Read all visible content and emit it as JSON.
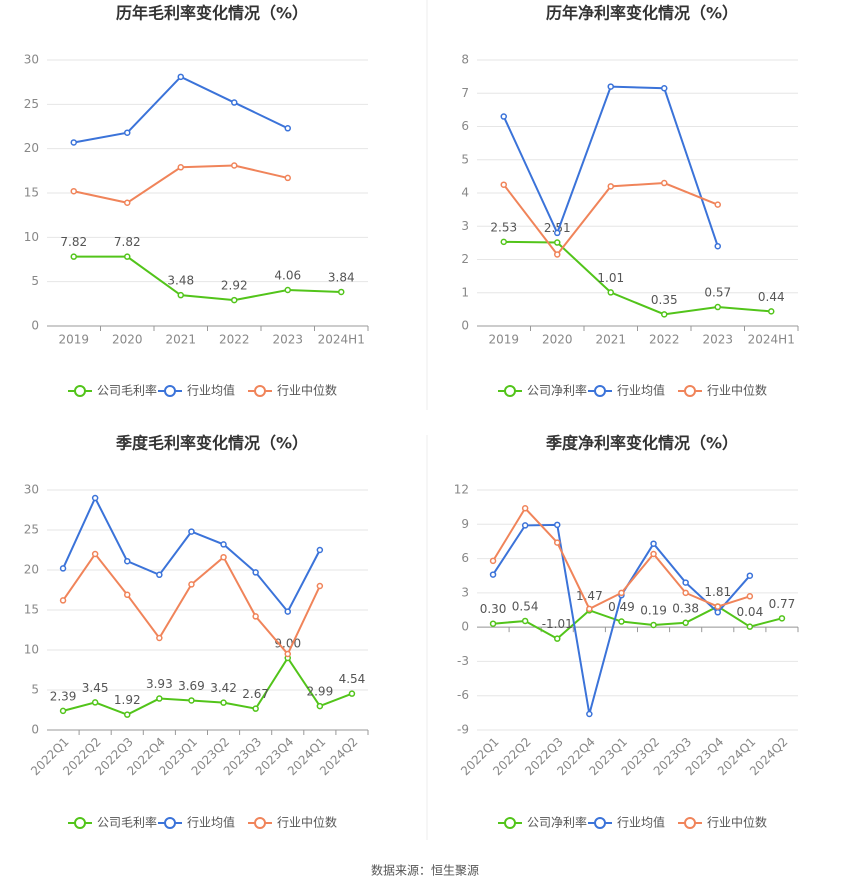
{
  "chart_data": [
    {
      "type": "line",
      "title": "历年毛利率变化情况（%）",
      "categories": [
        "2019",
        "2020",
        "2021",
        "2022",
        "2023",
        "2024H1"
      ],
      "ylim": [
        0,
        30
      ],
      "yticks": [
        0,
        5,
        10,
        15,
        20,
        25,
        30
      ],
      "grid": true,
      "series": [
        {
          "name": "公司毛利率",
          "color": "#52c41a",
          "values": [
            7.82,
            7.82,
            3.48,
            2.92,
            4.06,
            3.84
          ],
          "value_labels": [
            "7.82",
            "7.82",
            "3.48",
            "2.92",
            "4.06",
            "3.84"
          ]
        },
        {
          "name": "行业均值",
          "color": "#3b73d9",
          "values": [
            20.7,
            21.8,
            28.1,
            25.2,
            22.3,
            null
          ]
        },
        {
          "name": "行业中位数",
          "color": "#f0845a",
          "values": [
            15.2,
            13.9,
            17.9,
            18.1,
            16.7,
            null
          ]
        }
      ]
    },
    {
      "type": "line",
      "title": "历年净利率变化情况（%）",
      "categories": [
        "2019",
        "2020",
        "2021",
        "2022",
        "2023",
        "2024H1"
      ],
      "ylim": [
        0,
        8
      ],
      "yticks": [
        0,
        1,
        2,
        3,
        4,
        5,
        6,
        7,
        8
      ],
      "grid": true,
      "series": [
        {
          "name": "公司净利率",
          "color": "#52c41a",
          "values": [
            2.53,
            2.51,
            1.01,
            0.35,
            0.57,
            0.44
          ],
          "value_labels": [
            "2.53",
            "2.51",
            "1.01",
            "0.35",
            "0.57",
            "0.44"
          ]
        },
        {
          "name": "行业均值",
          "color": "#3b73d9",
          "values": [
            6.3,
            2.8,
            7.2,
            7.15,
            2.4,
            null
          ]
        },
        {
          "name": "行业中位数",
          "color": "#f0845a",
          "values": [
            4.25,
            2.15,
            4.2,
            4.3,
            3.65,
            null
          ]
        }
      ]
    },
    {
      "type": "line",
      "title": "季度毛利率变化情况（%）",
      "categories": [
        "2022Q1",
        "2022Q2",
        "2022Q3",
        "2022Q4",
        "2023Q1",
        "2023Q2",
        "2023Q3",
        "2023Q4",
        "2024Q1",
        "2024Q2"
      ],
      "ylim": [
        0,
        30
      ],
      "yticks": [
        0,
        5,
        10,
        15,
        20,
        25,
        30
      ],
      "grid": true,
      "series": [
        {
          "name": "公司毛利率",
          "color": "#52c41a",
          "values": [
            2.39,
            3.45,
            1.92,
            3.93,
            3.69,
            3.42,
            2.67,
            9.0,
            2.99,
            4.54
          ],
          "value_labels": [
            "2.39",
            "3.45",
            "1.92",
            "3.93",
            "3.69",
            "3.42",
            "2.67",
            "9.00",
            "2.99",
            "4.54"
          ]
        },
        {
          "name": "行业均值",
          "color": "#3b73d9",
          "values": [
            20.2,
            29.0,
            21.1,
            19.4,
            24.8,
            23.2,
            19.7,
            14.8,
            22.5,
            null
          ]
        },
        {
          "name": "行业中位数",
          "color": "#f0845a",
          "values": [
            16.2,
            22.0,
            16.9,
            11.5,
            18.2,
            21.6,
            14.2,
            9.5,
            18.0,
            null
          ]
        }
      ]
    },
    {
      "type": "line",
      "title": "季度净利率变化情况（%）",
      "categories": [
        "2022Q1",
        "2022Q2",
        "2022Q3",
        "2022Q4",
        "2023Q1",
        "2023Q2",
        "2023Q3",
        "2023Q4",
        "2024Q1",
        "2024Q2"
      ],
      "ylim": [
        -9,
        12
      ],
      "yticks": [
        -9,
        -6,
        -3,
        0,
        3,
        6,
        9,
        12
      ],
      "grid": true,
      "series": [
        {
          "name": "公司净利率",
          "color": "#52c41a",
          "values": [
            0.3,
            0.54,
            -1.01,
            1.47,
            0.49,
            0.19,
            0.38,
            1.81,
            0.04,
            0.77
          ],
          "value_labels": [
            "0.30",
            "0.54",
            "-1.01",
            "1.47",
            "0.49",
            "0.19",
            "0.38",
            "1.81",
            "0.04",
            "0.77"
          ]
        },
        {
          "name": "行业均值",
          "color": "#3b73d9",
          "values": [
            4.6,
            8.9,
            8.95,
            -7.6,
            2.8,
            7.3,
            3.9,
            1.3,
            4.5,
            null
          ]
        },
        {
          "name": "行业中位数",
          "color": "#f0845a",
          "values": [
            5.8,
            10.4,
            7.4,
            1.6,
            3.0,
            6.4,
            3.0,
            1.8,
            2.7,
            null
          ]
        }
      ]
    }
  ],
  "source": "数据来源：恒生聚源"
}
